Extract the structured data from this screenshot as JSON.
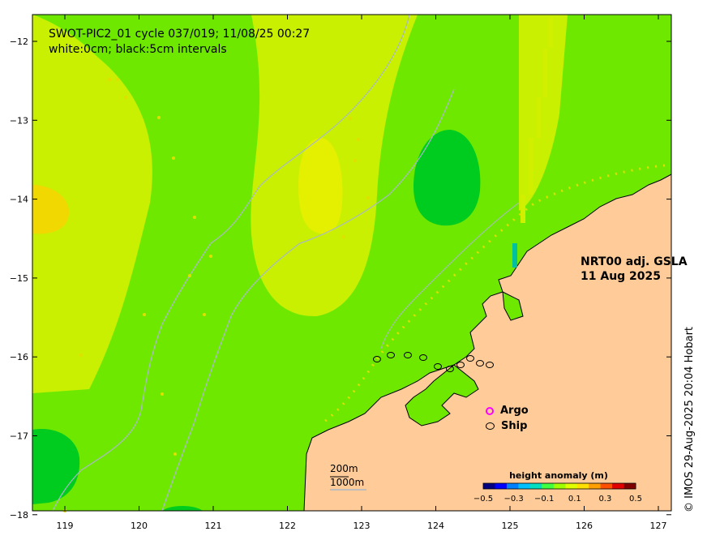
{
  "title": {
    "line1": "SWOT-PIC2_01 cycle 037/019; 11/08/25 00:27",
    "line2": "white:0cm; black:5cm intervals"
  },
  "product": {
    "line1": "NRT00 adj. GSLA",
    "line2": "11 Aug 2025"
  },
  "credit": "© IMOS 29-Aug-2025 20:04 Hobart",
  "legend": {
    "argo": "Argo",
    "ship": "Ship"
  },
  "scale": {
    "label_short": "200m",
    "label_long": "1000m"
  },
  "colorbar": {
    "title": "height anomaly (m)",
    "ticks": [
      "−0.5",
      "−0.3",
      "−0.1",
      "0.1",
      "0.3",
      "0.5"
    ],
    "colors": [
      "#000080",
      "#0000ff",
      "#0080ff",
      "#00c0ff",
      "#00e0c0",
      "#40ff40",
      "#a0ff00",
      "#e0ff00",
      "#ffe000",
      "#ffa000",
      "#ff5000",
      "#e00000",
      "#800000"
    ]
  },
  "axes": {
    "x_ticks": [
      "119",
      "120",
      "121",
      "122",
      "123",
      "124",
      "125",
      "126",
      "127"
    ],
    "y_ticks": [
      "−12",
      "−13",
      "−14",
      "−15",
      "−16",
      "−17",
      "−18"
    ]
  },
  "colors": {
    "ocean": "#6fe800",
    "land": "#ffcc99",
    "high": "#c8f000",
    "peak": "#f0d800",
    "low": "#00cc20"
  }
}
